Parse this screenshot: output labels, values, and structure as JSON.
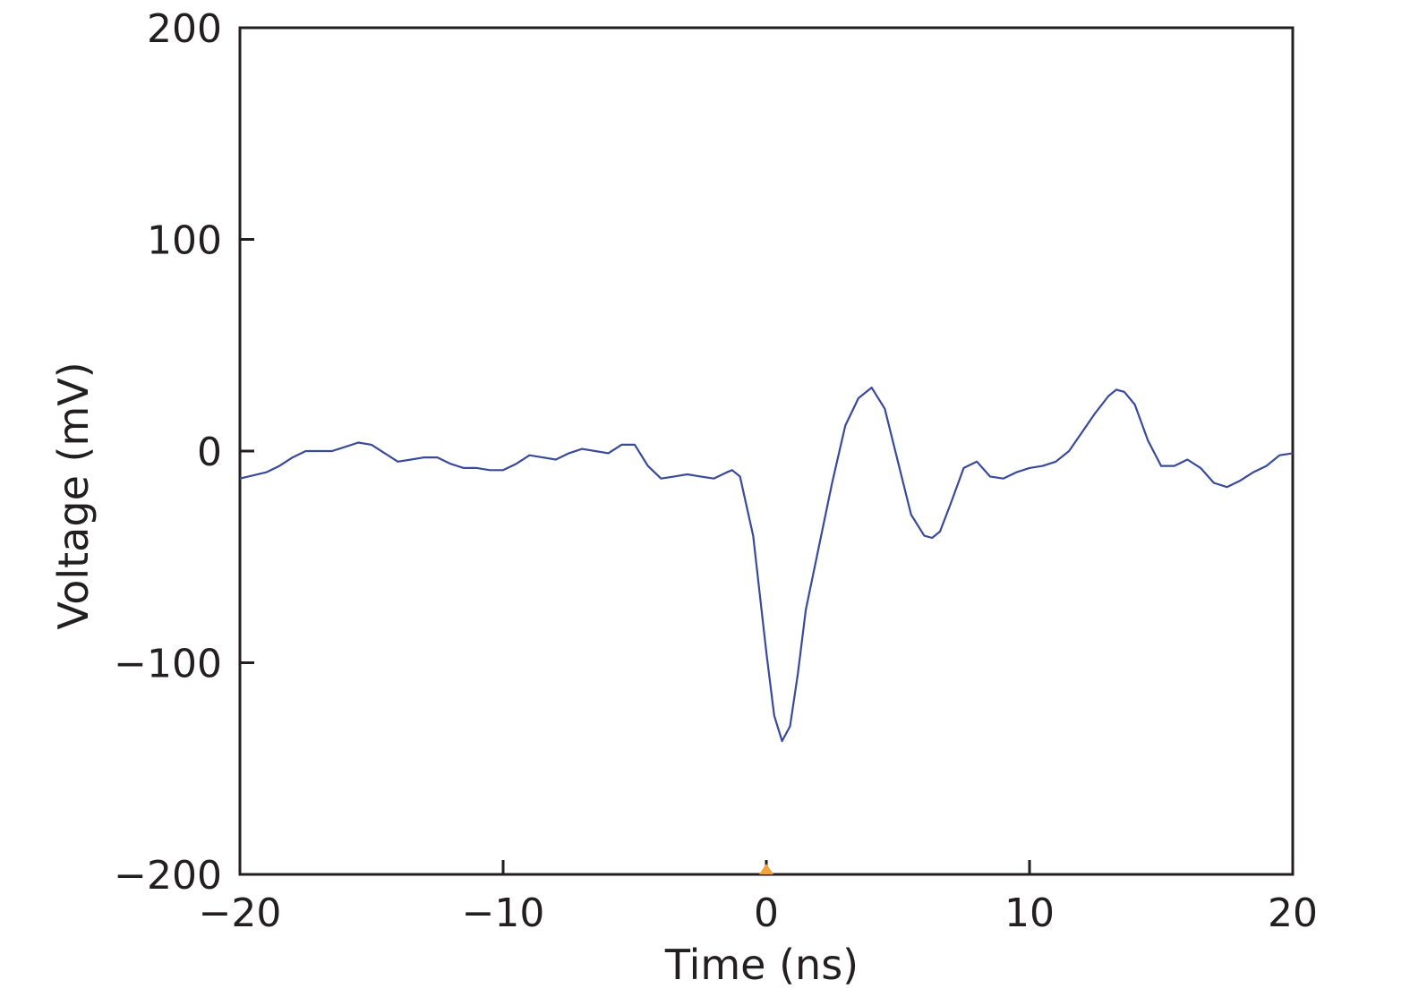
{
  "chart_data": {
    "type": "line",
    "title": "",
    "xlabel": "Time (ns)",
    "ylabel": "Voltage (mV)",
    "xlim": [
      -20,
      20
    ],
    "ylim": [
      -200,
      200
    ],
    "xticks": [
      -20,
      -10,
      0,
      10,
      20
    ],
    "xtick_labels": [
      "−20",
      "−10",
      "0",
      "10",
      "20"
    ],
    "yticks": [
      -200,
      -100,
      0,
      100,
      200
    ],
    "ytick_labels": [
      "−200",
      "−100",
      "0",
      "100",
      "200"
    ],
    "grid": false,
    "legend": false,
    "series": [
      {
        "color": "#3a4a9a",
        "x": [
          -20,
          -19,
          -18.5,
          -18,
          -17.5,
          -17,
          -16.5,
          -16,
          -15.5,
          -15,
          -14.5,
          -14,
          -13.5,
          -13,
          -12.5,
          -12,
          -11.5,
          -11,
          -10.5,
          -10,
          -9.5,
          -9,
          -8.5,
          -8,
          -7.5,
          -7,
          -6.5,
          -6,
          -5.5,
          -5,
          -4.5,
          -4,
          -3.5,
          -3,
          -2.5,
          -2,
          -1.5,
          -1.3,
          -1,
          -0.5,
          0,
          0.3,
          0.6,
          0.9,
          1.2,
          1.5,
          2,
          2.5,
          3,
          3.5,
          4,
          4.5,
          5,
          5.5,
          6,
          6.3,
          6.6,
          7,
          7.5,
          8,
          8.5,
          9,
          9.5,
          10,
          10.5,
          11,
          11.5,
          12,
          12.5,
          13,
          13.3,
          13.6,
          14,
          14.5,
          15,
          15.5,
          16,
          16.5,
          17,
          17.5,
          18,
          18.5,
          19,
          19.5,
          20
        ],
        "y": [
          -13,
          -10,
          -7,
          -3,
          0,
          0,
          0,
          2,
          4,
          3,
          -1,
          -5,
          -4,
          -3,
          -3,
          -6,
          -8,
          -8,
          -9,
          -9,
          -6,
          -2,
          -3,
          -4,
          -1,
          1,
          0,
          -1,
          3,
          3,
          -7,
          -13,
          -12,
          -11,
          -12,
          -13,
          -10,
          -9,
          -12,
          -40,
          -95,
          -125,
          -137,
          -130,
          -105,
          -75,
          -45,
          -15,
          12,
          25,
          30,
          20,
          -5,
          -30,
          -40,
          -41,
          -38,
          -25,
          -8,
          -5,
          -12,
          -13,
          -10,
          -8,
          -7,
          -5,
          0,
          9,
          18,
          26,
          29,
          28,
          22,
          5,
          -7,
          -7,
          -4,
          -8,
          -15,
          -17,
          -14,
          -10,
          -7,
          -2,
          -1
        ]
      }
    ],
    "annotations": [
      {
        "type": "marker",
        "x": 0,
        "y": -200,
        "color": "#f2a23c"
      }
    ]
  }
}
